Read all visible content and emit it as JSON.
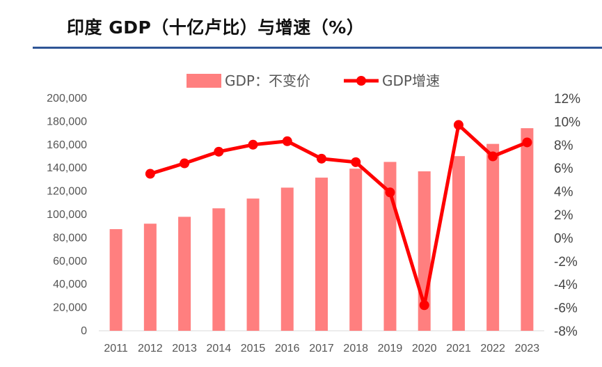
{
  "page": {
    "title": "印度 GDP（十亿卢比）与增速（%）"
  },
  "chart_data": {
    "type": "bar+line",
    "title": "印度 GDP（十亿卢比）与增速（%）",
    "categories": [
      "2011",
      "2012",
      "2013",
      "2014",
      "2015",
      "2016",
      "2017",
      "2018",
      "2019",
      "2020",
      "2021",
      "2022",
      "2023"
    ],
    "series": [
      {
        "name": "GDP：不变价",
        "type": "bar",
        "axis": "left",
        "color": "#ff7f7f",
        "values": [
          87400,
          92100,
          98000,
          105300,
          113700,
          123100,
          131700,
          139400,
          145200,
          137100,
          150200,
          160700,
          174200
        ]
      },
      {
        "name": "GDP增速",
        "type": "line",
        "axis": "right",
        "color": "#ff0000",
        "values": [
          null,
          5.5,
          6.4,
          7.4,
          8.0,
          8.3,
          6.8,
          6.5,
          3.9,
          -5.8,
          9.7,
          7.0,
          8.2
        ]
      }
    ],
    "y_left": {
      "range": [
        0,
        200000
      ],
      "ticks": [
        "0",
        "20,000",
        "40,000",
        "60,000",
        "80,000",
        "100,000",
        "120,000",
        "140,000",
        "160,000",
        "180,000",
        "200,000"
      ]
    },
    "y_right": {
      "range": [
        -8,
        12
      ],
      "ticks": [
        "-8%",
        "-6%",
        "-4%",
        "-2%",
        "0%",
        "2%",
        "4%",
        "6%",
        "8%",
        "10%",
        "12%"
      ]
    },
    "legend_position": "top-center",
    "grid": false
  }
}
